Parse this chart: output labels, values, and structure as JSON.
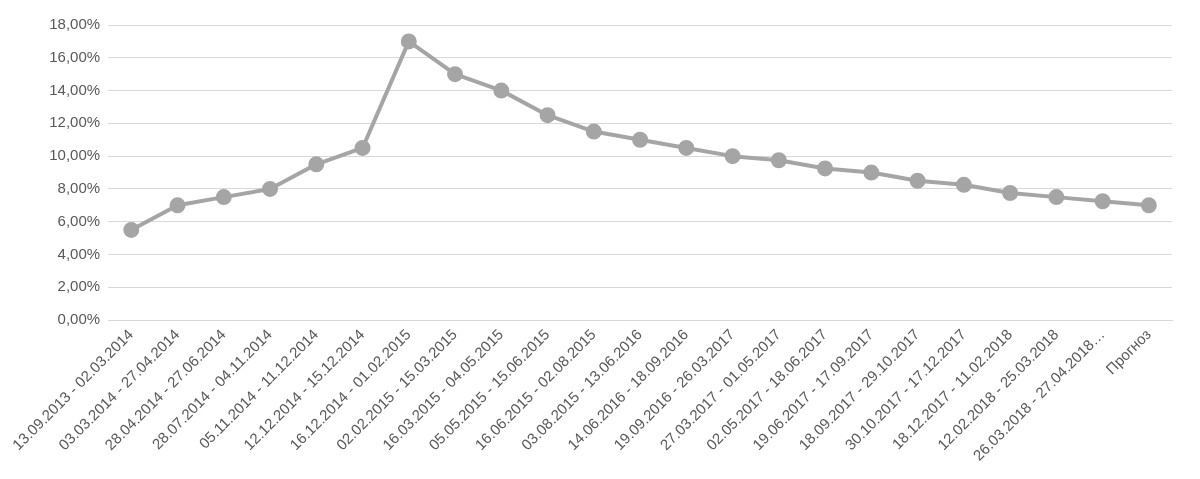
{
  "chart_data": {
    "type": "line",
    "categories": [
      "13.09.2013 - 02.03.2014",
      "03.03.2014 - 27.04.2014",
      "28.04.2014 - 27.06.2014",
      "28.07.2014 - 04.11.2014",
      "05.11.2014 - 11.12.2014",
      "12.12.2014 - 15.12.2014",
      "16.12.2014 - 01.02.2015",
      "02.02.2015 - 15.03.2015",
      "16.03.2015 - 04.05.2015",
      "05.05.2015 - 15.06.2015",
      "16.06.2015 - 02.08.2015",
      "03.08.2015 - 13.06.2016",
      "14.06.2016 - 18.09.2016",
      "19.09.2016 - 26.03.2017",
      "27.03.2017 - 01.05.2017",
      "02.05.2017 - 18.06.2017",
      "19.06.2017 - 17.09.2017",
      "18.09.2017 - 29.10.2017",
      "30.10.2017 - 17.12.2017",
      "18.12.2017 - 11.02.2018",
      "12.02.2018 - 25.03.2018",
      "26.03.2018 - 27.04.2018…",
      "Прогноз"
    ],
    "series": [
      {
        "color": "#a5a5a5",
        "values": [
          5.5,
          7,
          7.5,
          8,
          9.5,
          10.5,
          17,
          15,
          14,
          12.5,
          11.5,
          11,
          10.5,
          10,
          9.75,
          9.25,
          9,
          8.5,
          8.25,
          7.75,
          7.5,
          7.25,
          7
        ]
      }
    ],
    "ylim": [
      0,
      18
    ],
    "yticks": [
      {
        "value": 0,
        "label": "0,00%"
      },
      {
        "value": 2,
        "label": "2,00%"
      },
      {
        "value": 4,
        "label": "4,00%"
      },
      {
        "value": 6,
        "label": "6,00%"
      },
      {
        "value": 8,
        "label": "8,00%"
      },
      {
        "value": 10,
        "label": "10,00%"
      },
      {
        "value": 12,
        "label": "12,00%"
      },
      {
        "value": 14,
        "label": "14,00%"
      },
      {
        "value": 16,
        "label": "16,00%"
      },
      {
        "value": 18,
        "label": "18,00%"
      }
    ],
    "grid": "y",
    "legend": false,
    "marker": "circle",
    "line_style": "solid"
  }
}
